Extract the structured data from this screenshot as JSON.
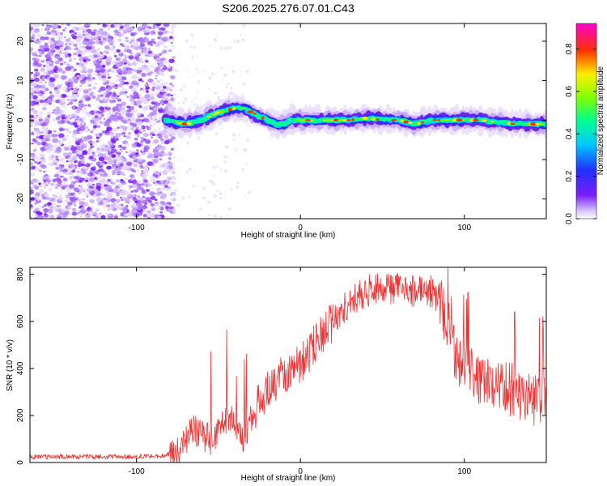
{
  "figure": {
    "title": "S206.2025.276.07.01.C43"
  },
  "chart_data": [
    {
      "type": "heatmap",
      "title": "",
      "xlabel": "Height of straight line (km)",
      "ylabel": "Frequency (Hz)",
      "xlim": [
        -165,
        150
      ],
      "ylim": [
        -25,
        24.5
      ],
      "x_ticks": [
        -100,
        0,
        100
      ],
      "y_ticks": [
        -20,
        -10,
        0,
        10,
        20
      ],
      "description_of_data": "Spectral amplitude vs height: diffuse noise for heights below about -80 km; a narrow signal band near 0 Hz from about -80 km to 150 km, bending slightly positive near -35 km.",
      "band_centerline": {
        "height_km": [
          -82,
          -70,
          -60,
          -50,
          -40,
          -35,
          -30,
          -25,
          -20,
          -15,
          -10,
          -5,
          0,
          10,
          20,
          30,
          40,
          50,
          60,
          70,
          80,
          90,
          100,
          110,
          120,
          130,
          140,
          150
        ],
        "freq_hz": [
          0,
          -1,
          0,
          2,
          3,
          3,
          2,
          1,
          0,
          -1,
          -1,
          0,
          0,
          0,
          0,
          0,
          0.5,
          0,
          0,
          -1,
          0,
          0,
          0,
          0,
          -0.5,
          -1,
          -1,
          -1
        ]
      },
      "colorbar": {
        "label": "Normalized spectral amplitude",
        "range": [
          0.0,
          0.92
        ],
        "ticks": [
          0.0,
          0.2,
          0.4,
          0.6,
          0.8
        ]
      }
    },
    {
      "type": "line",
      "title": "",
      "xlabel": "Height of straight line (km)",
      "ylabel": "SNR (10 * v/v)",
      "xlim": [
        -165,
        150
      ],
      "ylim": [
        0,
        830
      ],
      "x_ticks": [
        -100,
        0,
        100
      ],
      "y_ticks": [
        0,
        200,
        400,
        600,
        800
      ],
      "series": [
        {
          "name": "SNR",
          "color": "#ee3333",
          "x": [
            -165,
            -140,
            -120,
            -100,
            -85,
            -75,
            -70,
            -65,
            -60,
            -55,
            -50,
            -45,
            -40,
            -35,
            -30,
            -20,
            -10,
            0,
            10,
            20,
            30,
            40,
            50,
            60,
            70,
            80,
            85,
            90,
            95,
            100,
            110,
            120,
            130,
            140,
            150
          ],
          "y": [
            25,
            25,
            25,
            25,
            28,
            45,
            90,
            140,
            110,
            100,
            120,
            180,
            170,
            100,
            200,
            310,
            380,
            420,
            510,
            600,
            680,
            730,
            740,
            740,
            730,
            730,
            700,
            580,
            420,
            420,
            330,
            330,
            310,
            270,
            290
          ]
        }
      ]
    }
  ]
}
